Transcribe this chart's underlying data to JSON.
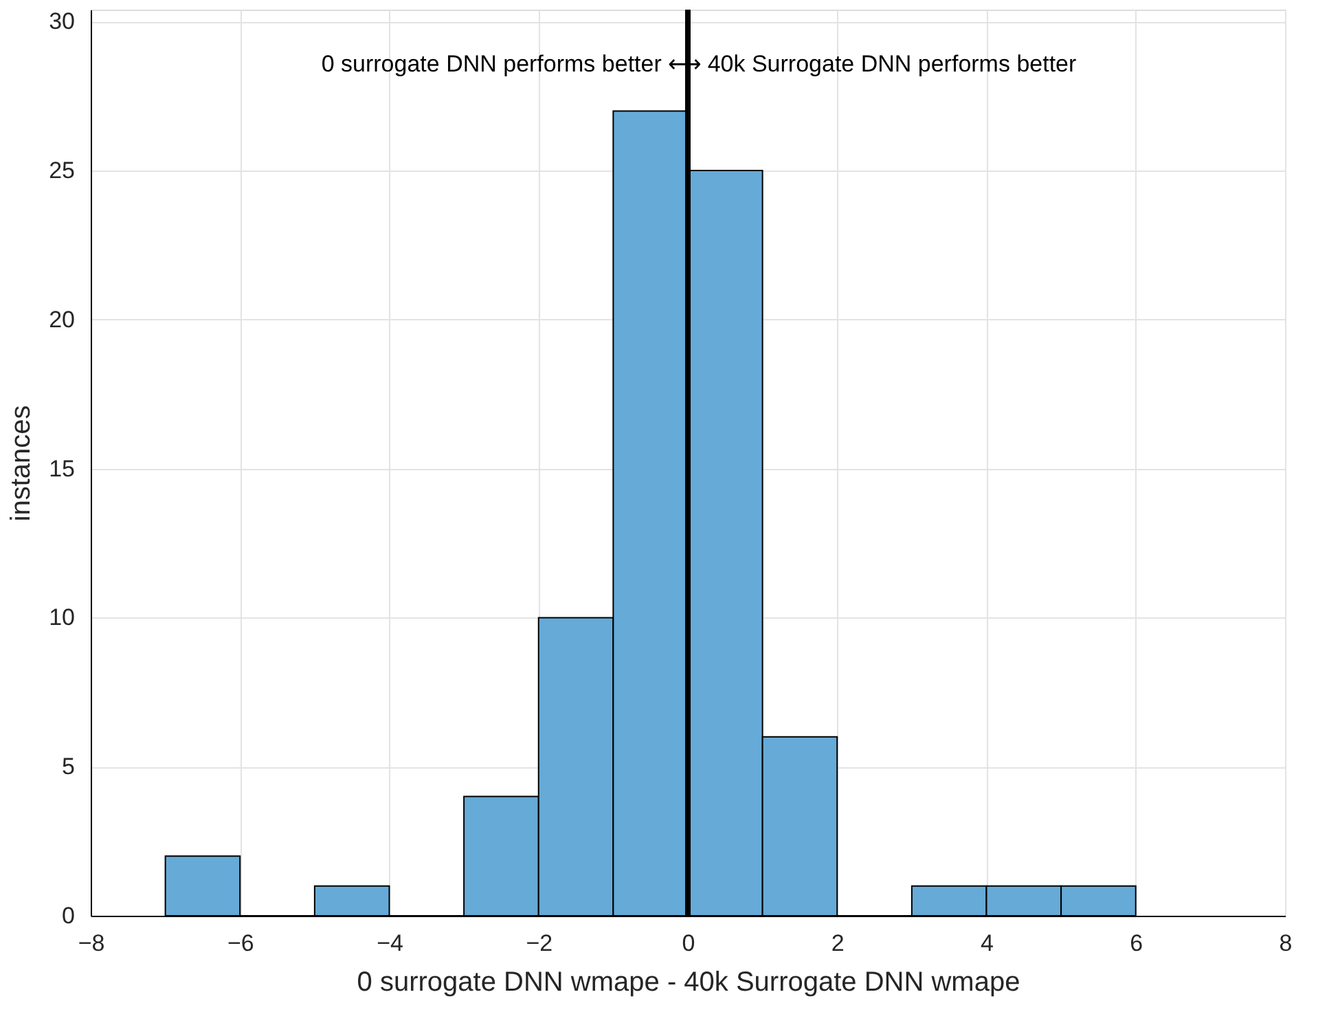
{
  "chart_data": {
    "type": "histogram",
    "xlabel": "0 surrogate DNN wmape - 40k Surrogate DNN wmape",
    "ylabel": "instances",
    "bins": [
      -7,
      -6,
      -5,
      -4,
      -3,
      -2,
      -1,
      0,
      1,
      2,
      3,
      4,
      5,
      6
    ],
    "values": [
      2,
      0,
      1,
      0,
      4,
      10,
      27,
      25,
      6,
      0,
      1,
      1,
      1
    ],
    "color": "#66aad7",
    "xlim": [
      -8,
      8
    ],
    "xticks": [
      -8,
      -6,
      -4,
      -2,
      0,
      2,
      4,
      6,
      8
    ],
    "ylim": [
      0,
      30.4
    ],
    "yticks": [
      0,
      5,
      10,
      15,
      20,
      25,
      30
    ],
    "grid": true,
    "ref_lines": [
      {
        "axis": "x",
        "value": 0,
        "color": "#000000",
        "line_style": "solid"
      }
    ],
    "annotations": [
      "0 surrogate DNN performs better ⟷ 40k Surrogate DNN performs better"
    ]
  }
}
